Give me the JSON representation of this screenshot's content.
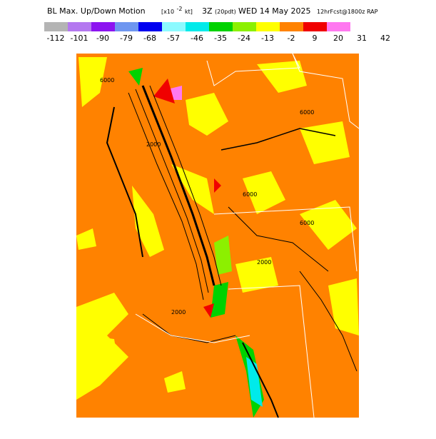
{
  "header": {
    "title_main": "BL Max. Up/Down Motion",
    "title_units_pre": "[x10",
    "title_units_exp": "-2",
    "title_units_post": "kt]",
    "title_time": "3Z",
    "title_local": "(20pdt)",
    "title_date": "WED 14 May 2025",
    "title_model": "12hrFcst@1800z RAP"
  },
  "colorbar": {
    "labels": [
      -112,
      -101,
      -90,
      -79,
      -68,
      -57,
      -46,
      -35,
      -24,
      -13,
      -2,
      9,
      20,
      31,
      42
    ],
    "colors": [
      "#b4b4b4",
      "#b478f0",
      "#8c14f0",
      "#6e96f0",
      "#0000f0",
      "#8cfaff",
      "#00eaea",
      "#00d200",
      "#8cf000",
      "#ffff00",
      "#ff8200",
      "#f00000",
      "#ff78f0"
    ]
  },
  "map": {
    "contour_labels": [
      "6000",
      "6000",
      "6000",
      "2000",
      "2000",
      "2000",
      "6000"
    ]
  }
}
